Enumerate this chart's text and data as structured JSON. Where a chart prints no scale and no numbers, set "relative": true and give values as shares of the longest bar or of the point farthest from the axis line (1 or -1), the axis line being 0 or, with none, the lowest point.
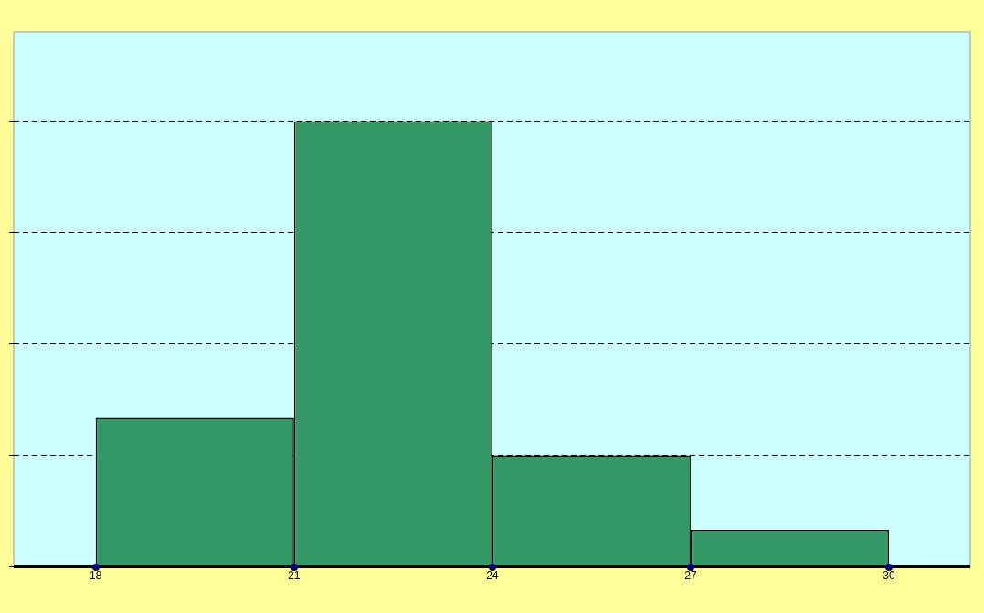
{
  "chart_data": {
    "type": "bar",
    "relative": true,
    "x": [
      19.5,
      22.5,
      25.5,
      28.5
    ],
    "values": [
      0.334,
      1,
      0.25,
      0.083
    ],
    "color": "#339966",
    "xlim": [
      16.76,
      31.23
    ],
    "xticks": [
      18,
      21,
      24,
      27,
      30
    ],
    "tick_labels": "x",
    "grid": "y",
    "legend": false
  }
}
